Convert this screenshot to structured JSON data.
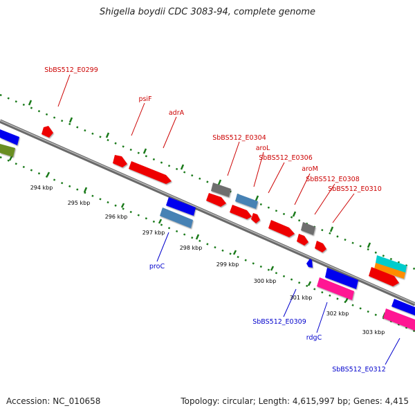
{
  "header": {
    "title": "Shigella boydii CDC 3083-94, complete genome"
  },
  "footer": {
    "accession": "Accession: NC_010658",
    "topology": "Topology: circular; Length: 4,615,997 bp; Genes: 4,415"
  },
  "ticks": [
    {
      "label": "294 kbp"
    },
    {
      "label": "295 kbp"
    },
    {
      "label": "296 kbp"
    },
    {
      "label": "297 kbp"
    },
    {
      "label": "298 kbp"
    },
    {
      "label": "299 kbp"
    },
    {
      "label": "300 kbp"
    },
    {
      "label": "301 kbp"
    },
    {
      "label": "302 kbp"
    },
    {
      "label": "303 kbp"
    }
  ],
  "genes_forward": [
    {
      "name": "SbBS512_E0299"
    },
    {
      "name": "psiF"
    },
    {
      "name": "adrA"
    },
    {
      "name": "SbBS512_E0304"
    },
    {
      "name": "aroL"
    },
    {
      "name": "SbBS512_E0306"
    },
    {
      "name": "aroM"
    },
    {
      "name": "SbBS512_E0308"
    },
    {
      "name": "SbBS512_E0310"
    }
  ],
  "genes_reverse": [
    {
      "name": "proC"
    },
    {
      "name": "SbBS512_E0309"
    },
    {
      "name": "rdgC"
    },
    {
      "name": "SbBS512_E0312"
    }
  ],
  "colors": {
    "forward_label": "#cc0000",
    "reverse_label": "#0000cc",
    "tick": "#1a7a1a",
    "backbone": "#888888",
    "red_feature": "#ee0000",
    "blue_feature": "#0000ee",
    "steelblue_feature": "#4682b4",
    "gray_feature": "#6e6e6e",
    "magenta_feature": "#ff1493",
    "cyan_feature": "#00cccc",
    "orange_feature": "#ff8c00",
    "olive_feature": "#6b8e23"
  }
}
